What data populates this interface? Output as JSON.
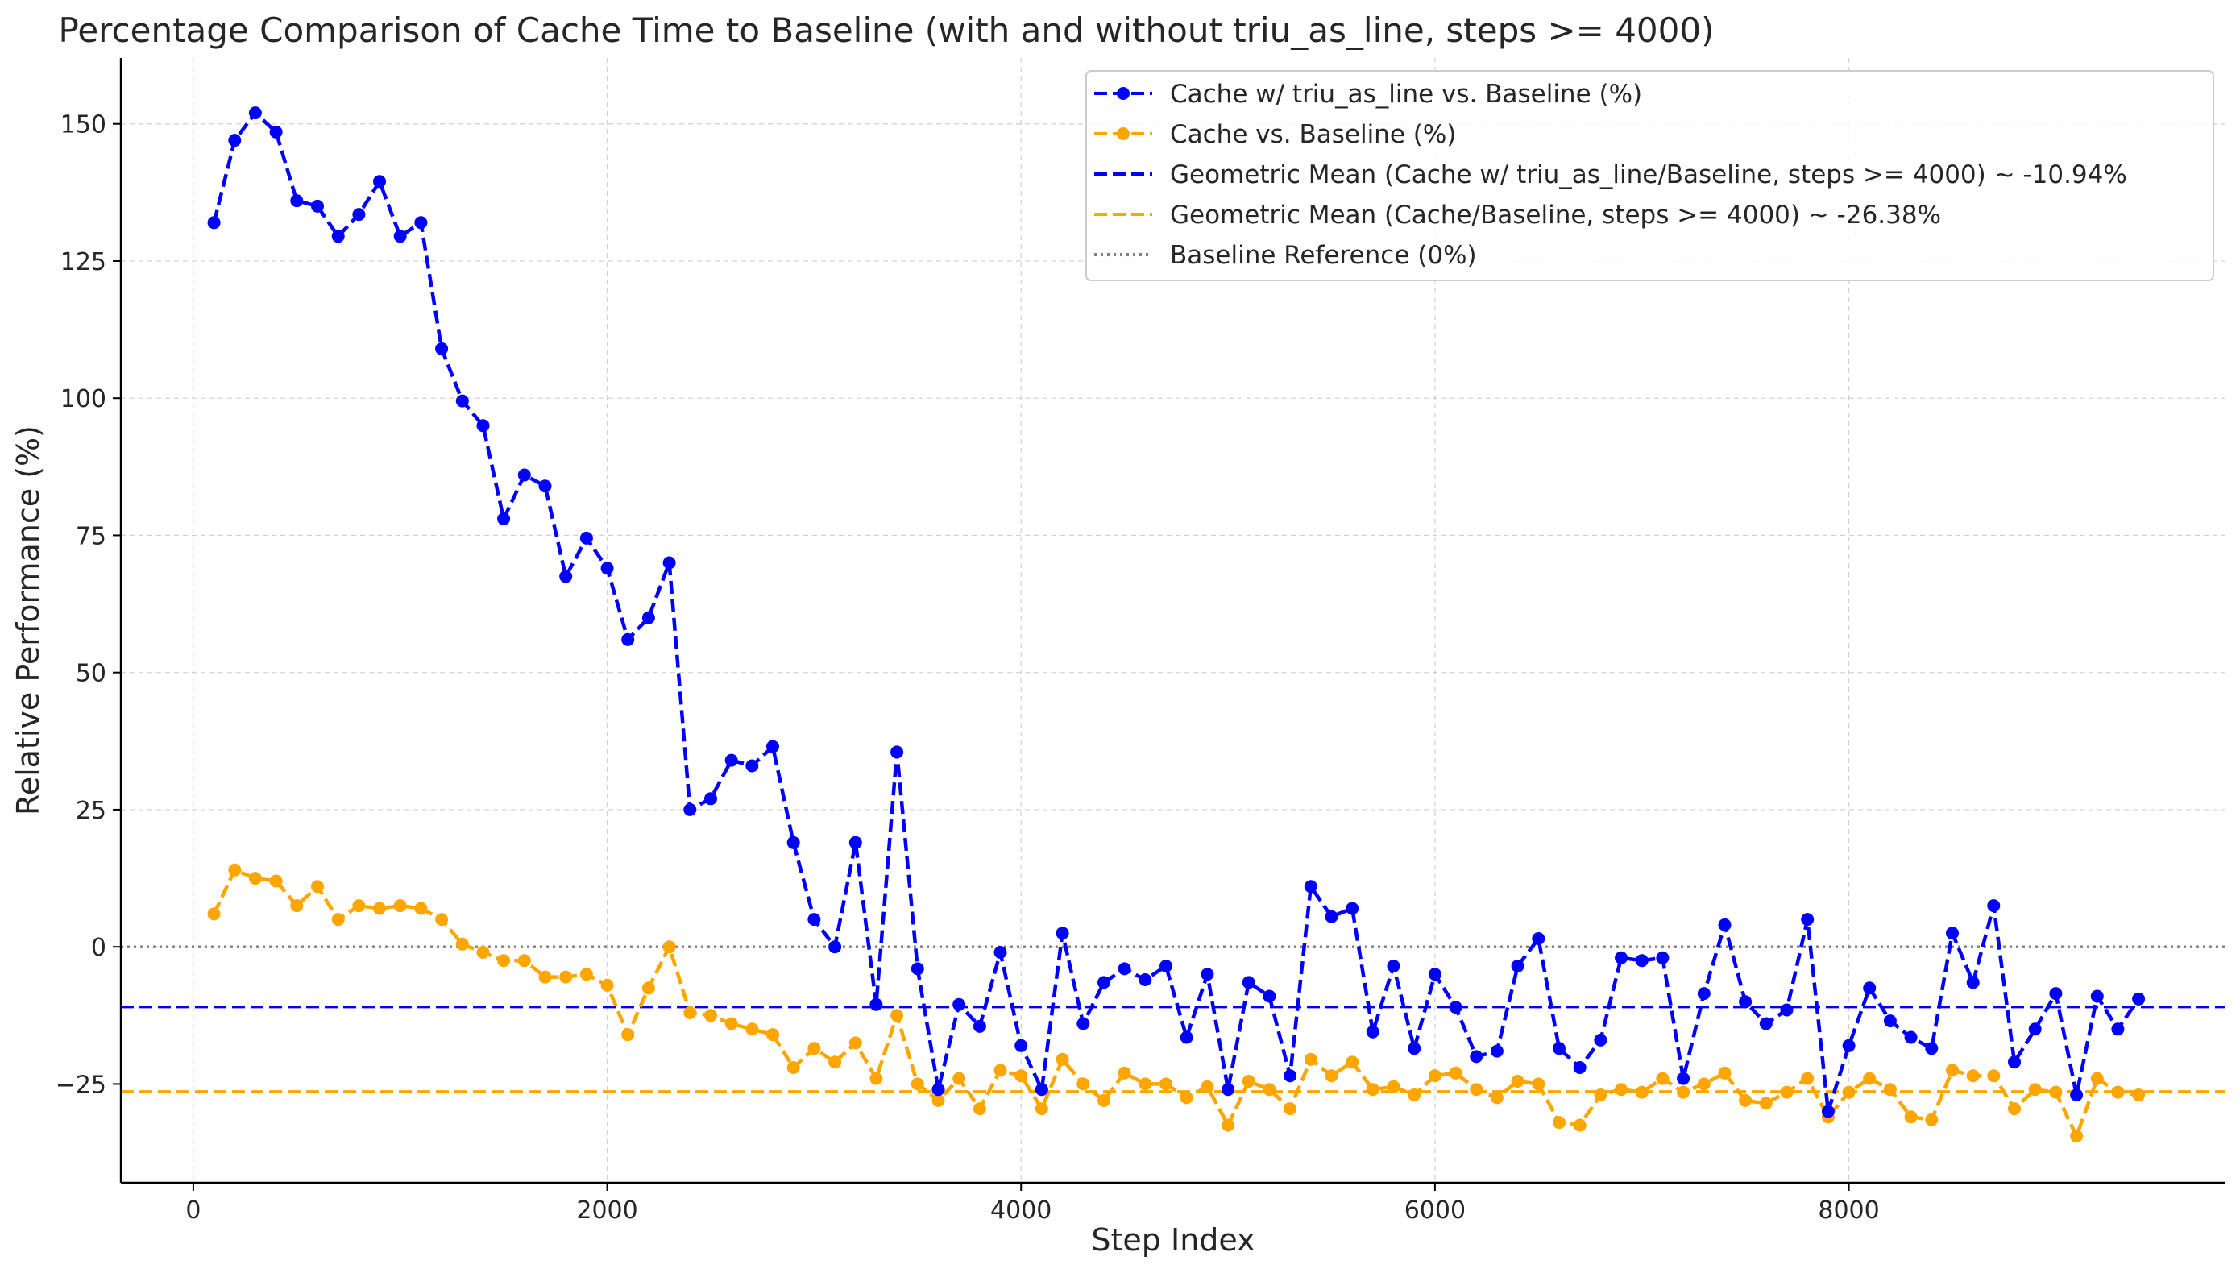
{
  "chart_data": {
    "type": "line",
    "title": "Percentage Comparison of Cache Time to Baseline (with and without triu_as_line, steps >= 4000)",
    "xlabel": "Step Index",
    "ylabel": "Relative Performance (%)",
    "xlim": [
      -350,
      9820
    ],
    "ylim": [
      -43,
      162
    ],
    "xticks": [
      0,
      2000,
      4000,
      6000,
      8000
    ],
    "xtick_labels": [
      "0",
      "2000",
      "4000",
      "6000",
      "8000"
    ],
    "yticks": [
      -25,
      0,
      25,
      50,
      75,
      100,
      125,
      150
    ],
    "ytick_labels": [
      "−25",
      "0",
      "25",
      "50",
      "75",
      "100",
      "125",
      "150"
    ],
    "grid": true,
    "legend_position": "top-right",
    "x": [
      100,
      200,
      300,
      400,
      500,
      600,
      700,
      800,
      900,
      1000,
      1100,
      1200,
      1300,
      1400,
      1500,
      1600,
      1700,
      1800,
      1900,
      2000,
      2100,
      2200,
      2300,
      2400,
      2500,
      2600,
      2700,
      2800,
      2900,
      3000,
      3100,
      3200,
      3300,
      3400,
      3500,
      3600,
      3700,
      3800,
      3900,
      4000,
      4100,
      4200,
      4300,
      4400,
      4500,
      4600,
      4700,
      4800,
      4900,
      5000,
      5100,
      5200,
      5300,
      5400,
      5500,
      5600,
      5700,
      5800,
      5900,
      6000,
      6100,
      6200,
      6300,
      6400,
      6500,
      6600,
      6700,
      6800,
      6900,
      7000,
      7100,
      7200,
      7300,
      7400,
      7500,
      7600,
      7700,
      7800,
      7900,
      8000,
      8100,
      8200,
      8300,
      8400,
      8500,
      8600,
      8700,
      8800,
      8900,
      9000,
      9100,
      9200,
      9300,
      9400
    ],
    "series": [
      {
        "name": "Cache w/ triu_as_line vs. Baseline (%)",
        "color": "#0000ff",
        "style": "dashed-markers",
        "values": [
          132,
          147,
          152,
          148.5,
          136,
          135,
          129.5,
          133.5,
          139.5,
          129.5,
          132,
          109,
          99.5,
          95,
          78,
          86,
          84,
          67.5,
          74.5,
          69,
          56,
          60,
          70,
          25,
          27,
          34,
          33,
          36.5,
          19,
          5,
          0,
          19,
          -10.5,
          35.5,
          -4,
          -26,
          -10.5,
          -14.5,
          -1,
          -18,
          -26,
          2.5,
          -14,
          -6.5,
          -4,
          -6,
          -3.5,
          -16.5,
          -5,
          -26,
          -6.5,
          -9,
          -23.5,
          11,
          5.5,
          7,
          -15.5,
          -3.5,
          -18.5,
          -5,
          -11,
          -20,
          -19,
          -3.5,
          1.5,
          -18.5,
          -22,
          -17,
          -2,
          -2.5,
          -2,
          -24,
          -8.5,
          4,
          -10,
          -14,
          -11.5,
          5,
          -30,
          -18,
          -7.5,
          -13.5,
          -16.5,
          -18.5,
          2.5,
          -6.5,
          7.5,
          -21,
          -15,
          -8.5,
          -27,
          -9,
          -15,
          -9.5
        ]
      },
      {
        "name": "Cache vs. Baseline (%)",
        "color": "#ffa500",
        "style": "dashed-markers",
        "values": [
          6,
          14,
          12.5,
          12,
          7.5,
          11,
          5,
          7.5,
          7,
          7.5,
          7,
          5,
          0.5,
          -1,
          -2.5,
          -2.5,
          -5.5,
          -5.5,
          -5,
          -7,
          -16,
          -7.5,
          0,
          -12,
          -12.5,
          -14,
          -15,
          -16,
          -22,
          -18.5,
          -21,
          -17.5,
          -24,
          -12.5,
          -25,
          -28,
          -24,
          -29.5,
          -22.5,
          -23.5,
          -29.5,
          -20.5,
          -25,
          -28,
          -23,
          -25,
          -25,
          -27.5,
          -25.5,
          -32.5,
          -24.5,
          -26,
          -29.5,
          -20.5,
          -23.5,
          -21,
          -26,
          -25.5,
          -27,
          -23.5,
          -23,
          -26,
          -27.5,
          -24.5,
          -25,
          -32,
          -32.5,
          -27,
          -26,
          -26.5,
          -24,
          -26.5,
          -25,
          -23,
          -28,
          -28.5,
          -26.5,
          -24,
          -31,
          -26.5,
          -24,
          -26,
          -31,
          -31.5,
          -22.5,
          -23.5,
          -23.5,
          -29.5,
          -26,
          -26.5,
          -34.5,
          -24,
          -26.5,
          -27
        ]
      }
    ],
    "reference_lines": [
      {
        "name": "Geometric Mean (Cache w/ triu_as_line/Baseline, steps >= 4000) ~ -10.94%",
        "value": -10.94,
        "color": "#0000ff",
        "style": "dashed"
      },
      {
        "name": "Geometric Mean (Cache/Baseline, steps >= 4000) ~ -26.38%",
        "value": -26.38,
        "color": "#ffa500",
        "style": "dashed"
      },
      {
        "name": "Baseline Reference (0%)",
        "value": 0,
        "color": "#808080",
        "style": "dotted"
      }
    ]
  }
}
